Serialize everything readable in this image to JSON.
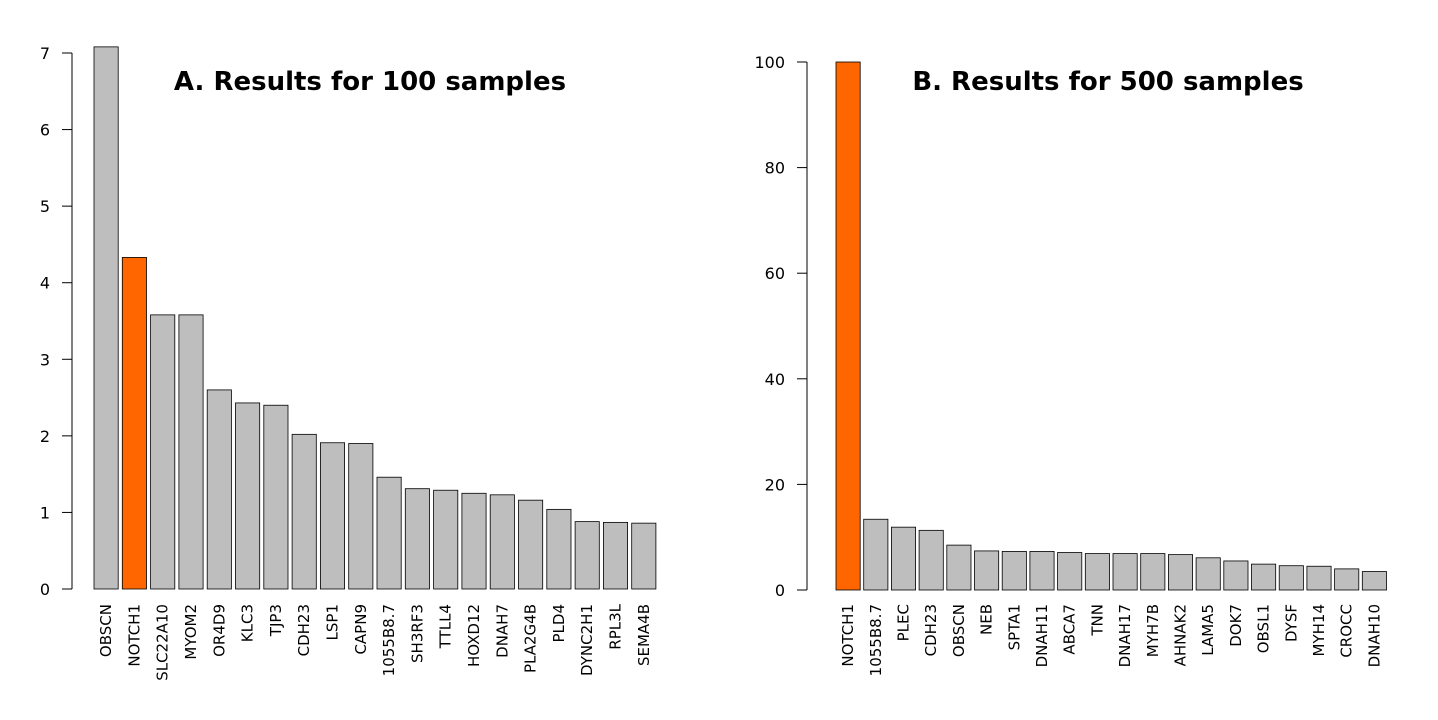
{
  "chart_data": [
    {
      "type": "bar",
      "title": "A. Results for 100 samples",
      "xlabel": "",
      "ylabel": "",
      "ylim": [
        0,
        7
      ],
      "yticks": [
        0,
        1,
        2,
        3,
        4,
        5,
        6,
        7
      ],
      "categories": [
        "OBSCN",
        "NOTCH1",
        "SLC22A10",
        "MYOM2",
        "OR4D9",
        "KLC3",
        "TJP3",
        "CDH23",
        "LSP1",
        "CAPN9",
        "1055B8.7",
        "SH3RF3",
        "TTLL4",
        "HOXD12",
        "DNAH7",
        "PLA2G4B",
        "PLD4",
        "DYNC2H1",
        "RPL3L",
        "SEMA4B"
      ],
      "values": [
        7.08,
        4.33,
        3.58,
        3.58,
        2.6,
        2.43,
        2.4,
        2.02,
        1.91,
        1.9,
        1.46,
        1.31,
        1.29,
        1.25,
        1.23,
        1.16,
        1.04,
        0.88,
        0.87,
        0.86
      ],
      "highlight": "NOTCH1",
      "colors": {
        "default": "#bebebe",
        "highlight": "#ff6600"
      },
      "grid": false
    },
    {
      "type": "bar",
      "title": "B. Results for 500 samples",
      "xlabel": "",
      "ylabel": "",
      "ylim": [
        0,
        100
      ],
      "yticks": [
        0,
        20,
        40,
        60,
        80,
        100
      ],
      "categories": [
        "NOTCH1",
        "1055B8.7",
        "PLEC",
        "CDH23",
        "OBSCN",
        "NEB",
        "SPTA1",
        "DNAH11",
        "ABCA7",
        "TNN",
        "DNAH17",
        "MYH7B",
        "AHNAK2",
        "LAMA5",
        "DOK7",
        "OBSL1",
        "DYSF",
        "MYH14",
        "CROCC",
        "DNAH10"
      ],
      "values": [
        100,
        13.4,
        11.9,
        11.3,
        8.5,
        7.4,
        7.3,
        7.3,
        7.1,
        6.9,
        6.9,
        6.9,
        6.7,
        6.1,
        5.5,
        4.9,
        4.6,
        4.5,
        4.0,
        3.5
      ],
      "highlight": "NOTCH1",
      "colors": {
        "default": "#bebebe",
        "highlight": "#ff6600"
      },
      "grid": false
    }
  ]
}
